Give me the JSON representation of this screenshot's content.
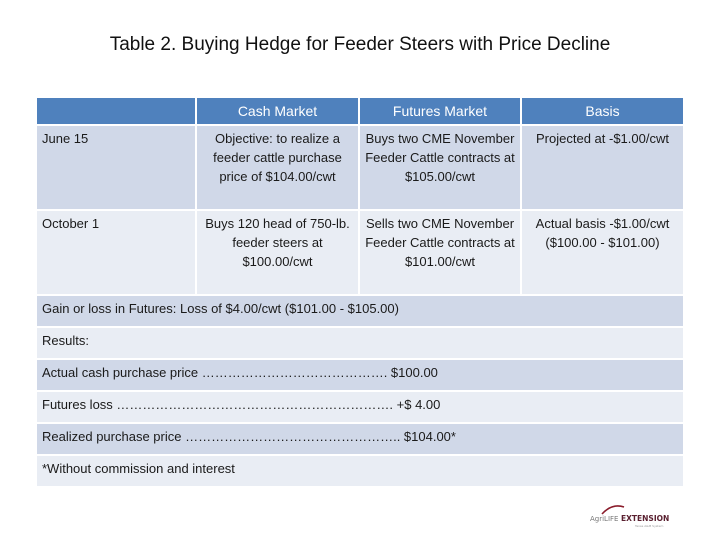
{
  "title": "Table 2. Buying Hedge for Feeder Steers with Price Decline",
  "headers": [
    "",
    "Cash Market",
    "Futures Market",
    "Basis"
  ],
  "rows": [
    {
      "date": "June 15",
      "cash": "Objective: to realize a feeder cattle purchase price of $104.00/cwt",
      "futures": "Buys two CME November Feeder Cattle contracts at $105.00/cwt",
      "basis": "Projected at -$1.00/cwt"
    },
    {
      "date": "October 1",
      "cash": "Buys 120 head of 750-lb. feeder steers at $100.00/cwt",
      "futures": "Sells two CME November Feeder Cattle contracts at $101.00/cwt",
      "basis": "Actual basis -$1.00/cwt ($100.00 - $101.00)"
    }
  ],
  "summary": {
    "gain_loss": "Gain or loss in Futures: Loss of $4.00/cwt ($101.00 - $105.00)",
    "results_label": "Results:",
    "actual_cash": "Actual cash purchase price ……………………………………. $100.00",
    "futures_loss": "Futures loss ………………………………………………………. +$     4.00",
    "realized": "Realized purchase price ………………………………………….. $104.00*",
    "footnote": "*Without commission and interest"
  },
  "logo": {
    "text_left": "AgriLIFE",
    "text_right": "EXTENSION",
    "sub": "Texas A&M System"
  }
}
